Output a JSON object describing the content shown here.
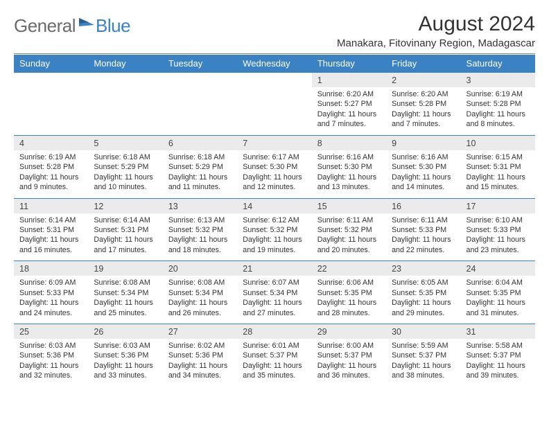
{
  "logo": {
    "gray": "General",
    "blue": "Blue"
  },
  "title": "August 2024",
  "location": "Manakara, Fitovinany Region, Madagascar",
  "colors": {
    "header_bg": "#3b82c4",
    "daynum_bg": "#ebebeb",
    "rule": "#3b82c4"
  },
  "weekdays": [
    "Sunday",
    "Monday",
    "Tuesday",
    "Wednesday",
    "Thursday",
    "Friday",
    "Saturday"
  ],
  "weeks": [
    {
      "nums": [
        "",
        "",
        "",
        "",
        "1",
        "2",
        "3"
      ],
      "cells": [
        "",
        "",
        "",
        "",
        "Sunrise: 6:20 AM\nSunset: 5:27 PM\nDaylight: 11 hours and 7 minutes.",
        "Sunrise: 6:20 AM\nSunset: 5:28 PM\nDaylight: 11 hours and 7 minutes.",
        "Sunrise: 6:19 AM\nSunset: 5:28 PM\nDaylight: 11 hours and 8 minutes."
      ]
    },
    {
      "nums": [
        "4",
        "5",
        "6",
        "7",
        "8",
        "9",
        "10"
      ],
      "cells": [
        "Sunrise: 6:19 AM\nSunset: 5:28 PM\nDaylight: 11 hours and 9 minutes.",
        "Sunrise: 6:18 AM\nSunset: 5:29 PM\nDaylight: 11 hours and 10 minutes.",
        "Sunrise: 6:18 AM\nSunset: 5:29 PM\nDaylight: 11 hours and 11 minutes.",
        "Sunrise: 6:17 AM\nSunset: 5:30 PM\nDaylight: 11 hours and 12 minutes.",
        "Sunrise: 6:16 AM\nSunset: 5:30 PM\nDaylight: 11 hours and 13 minutes.",
        "Sunrise: 6:16 AM\nSunset: 5:30 PM\nDaylight: 11 hours and 14 minutes.",
        "Sunrise: 6:15 AM\nSunset: 5:31 PM\nDaylight: 11 hours and 15 minutes."
      ]
    },
    {
      "nums": [
        "11",
        "12",
        "13",
        "14",
        "15",
        "16",
        "17"
      ],
      "cells": [
        "Sunrise: 6:14 AM\nSunset: 5:31 PM\nDaylight: 11 hours and 16 minutes.",
        "Sunrise: 6:14 AM\nSunset: 5:31 PM\nDaylight: 11 hours and 17 minutes.",
        "Sunrise: 6:13 AM\nSunset: 5:32 PM\nDaylight: 11 hours and 18 minutes.",
        "Sunrise: 6:12 AM\nSunset: 5:32 PM\nDaylight: 11 hours and 19 minutes.",
        "Sunrise: 6:11 AM\nSunset: 5:32 PM\nDaylight: 11 hours and 20 minutes.",
        "Sunrise: 6:11 AM\nSunset: 5:33 PM\nDaylight: 11 hours and 22 minutes.",
        "Sunrise: 6:10 AM\nSunset: 5:33 PM\nDaylight: 11 hours and 23 minutes."
      ]
    },
    {
      "nums": [
        "18",
        "19",
        "20",
        "21",
        "22",
        "23",
        "24"
      ],
      "cells": [
        "Sunrise: 6:09 AM\nSunset: 5:33 PM\nDaylight: 11 hours and 24 minutes.",
        "Sunrise: 6:08 AM\nSunset: 5:34 PM\nDaylight: 11 hours and 25 minutes.",
        "Sunrise: 6:08 AM\nSunset: 5:34 PM\nDaylight: 11 hours and 26 minutes.",
        "Sunrise: 6:07 AM\nSunset: 5:34 PM\nDaylight: 11 hours and 27 minutes.",
        "Sunrise: 6:06 AM\nSunset: 5:35 PM\nDaylight: 11 hours and 28 minutes.",
        "Sunrise: 6:05 AM\nSunset: 5:35 PM\nDaylight: 11 hours and 29 minutes.",
        "Sunrise: 6:04 AM\nSunset: 5:35 PM\nDaylight: 11 hours and 31 minutes."
      ]
    },
    {
      "nums": [
        "25",
        "26",
        "27",
        "28",
        "29",
        "30",
        "31"
      ],
      "cells": [
        "Sunrise: 6:03 AM\nSunset: 5:36 PM\nDaylight: 11 hours and 32 minutes.",
        "Sunrise: 6:03 AM\nSunset: 5:36 PM\nDaylight: 11 hours and 33 minutes.",
        "Sunrise: 6:02 AM\nSunset: 5:36 PM\nDaylight: 11 hours and 34 minutes.",
        "Sunrise: 6:01 AM\nSunset: 5:37 PM\nDaylight: 11 hours and 35 minutes.",
        "Sunrise: 6:00 AM\nSunset: 5:37 PM\nDaylight: 11 hours and 36 minutes.",
        "Sunrise: 5:59 AM\nSunset: 5:37 PM\nDaylight: 11 hours and 38 minutes.",
        "Sunrise: 5:58 AM\nSunset: 5:37 PM\nDaylight: 11 hours and 39 minutes."
      ]
    }
  ]
}
